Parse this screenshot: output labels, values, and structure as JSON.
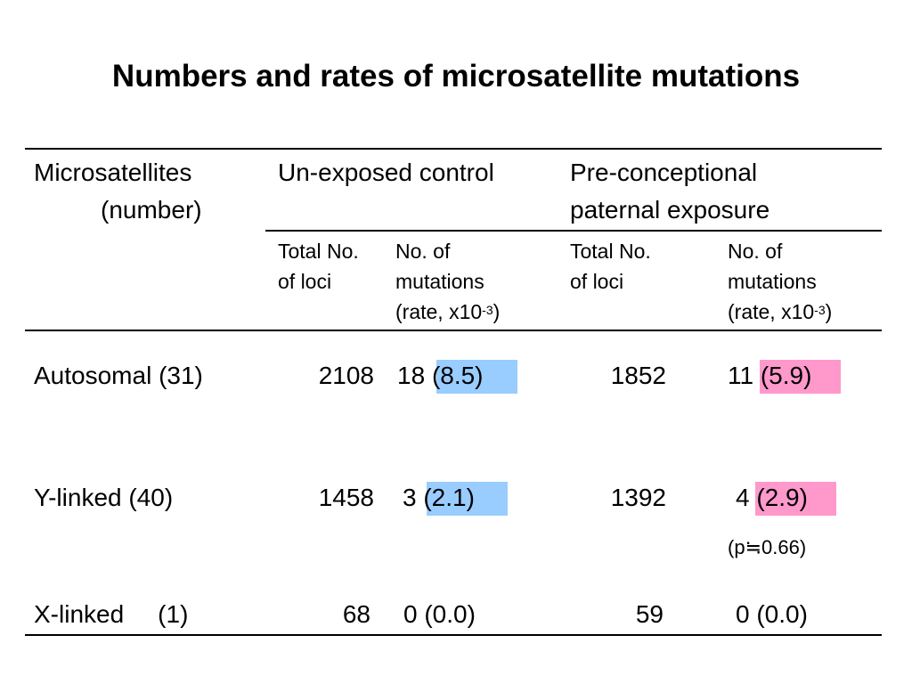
{
  "title": "Numbers and rates of microsatellite mutations",
  "header": {
    "col_microsatellites_line1": "Microsatellites",
    "col_microsatellites_line2": "(number)",
    "group_control": "Un-exposed control",
    "group_exposure_line1": "Pre-conceptional",
    "group_exposure_line2": "paternal exposure",
    "sub_total_line1": "Total No.",
    "sub_total_line2": "of loci",
    "sub_mut_line1": "No. of",
    "sub_mut_line2": "mutations",
    "sub_mut_line3_prefix": "(rate, x10",
    "sub_mut_line3_exp": "-3",
    "sub_mut_line3_suffix": ")"
  },
  "rows": [
    {
      "label": "Autosomal (31)",
      "control_total": "2108",
      "control_mut": "18",
      "control_rate": "(8.5)",
      "exposed_total": "1852",
      "exposed_mut": "11",
      "exposed_rate": "(5.9)"
    },
    {
      "label": "Y-linked (40)",
      "control_total": "1458",
      "control_mut": "3",
      "control_rate": "(2.1)",
      "exposed_total": "1392",
      "exposed_mut": "4",
      "exposed_rate": "(2.9)"
    },
    {
      "label_main": "X-linked",
      "label_count": "(1)",
      "control_total": "68",
      "control_mut": "0",
      "control_rate": "(0.0)",
      "exposed_total": "59",
      "exposed_mut": "0",
      "exposed_rate": "(0.0)"
    }
  ],
  "p_value": {
    "prefix": "(p",
    "symbol": "≒",
    "value": "0.66)"
  },
  "colors": {
    "control_highlight": "#99ccff",
    "exposure_highlight": "#ff99cc"
  }
}
